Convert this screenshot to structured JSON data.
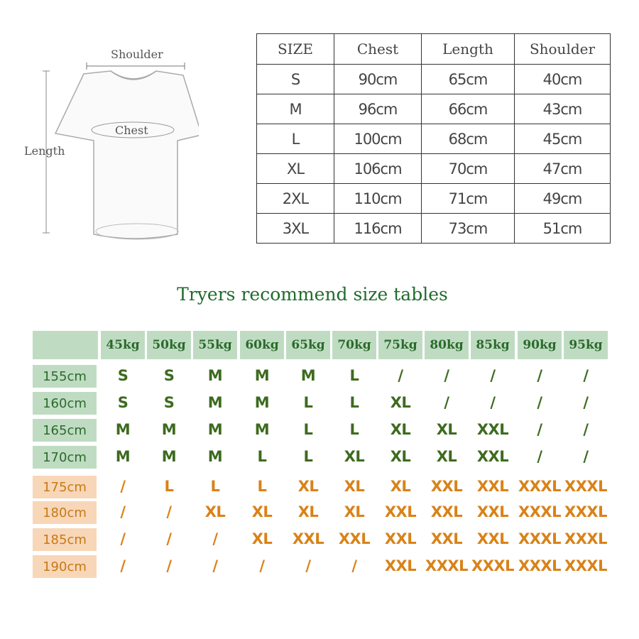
{
  "diagram": {
    "shoulder": "Shoulder",
    "chest": "Chest",
    "length": "Length"
  },
  "size_table": {
    "headers": [
      "SIZE",
      "Chest",
      "Length",
      "Shoulder"
    ],
    "rows": [
      [
        "S",
        "90cm",
        "65cm",
        "40cm"
      ],
      [
        "M",
        "96cm",
        "66cm",
        "43cm"
      ],
      [
        "L",
        "100cm",
        "68cm",
        "45cm"
      ],
      [
        "XL",
        "106cm",
        "70cm",
        "47cm"
      ],
      [
        "2XL",
        "110cm",
        "71cm",
        "49cm"
      ],
      [
        "3XL",
        "116cm",
        "73cm",
        "51cm"
      ]
    ]
  },
  "recommend": {
    "title": "Tryers recommend size tables",
    "weights": [
      "45kg",
      "50kg",
      "55kg",
      "60kg",
      "65kg",
      "70kg",
      "75kg",
      "80kg",
      "85kg",
      "90kg",
      "95kg"
    ],
    "rows": [
      {
        "height": "155cm",
        "tone": "green",
        "values": [
          "S",
          "S",
          "M",
          "M",
          "M",
          "L",
          "/",
          "/",
          "/",
          "/",
          "/"
        ]
      },
      {
        "height": "160cm",
        "tone": "green",
        "values": [
          "S",
          "S",
          "M",
          "M",
          "L",
          "L",
          "XL",
          "/",
          "/",
          "/",
          "/"
        ]
      },
      {
        "height": "165cm",
        "tone": "green",
        "values": [
          "M",
          "M",
          "M",
          "M",
          "L",
          "L",
          "XL",
          "XL",
          "XXL",
          "/",
          "/"
        ]
      },
      {
        "height": "170cm",
        "tone": "green",
        "values": [
          "M",
          "M",
          "M",
          "L",
          "L",
          "XL",
          "XL",
          "XL",
          "XXL",
          "/",
          "/"
        ]
      },
      {
        "height": "175cm",
        "tone": "orange",
        "values": [
          "/",
          "L",
          "L",
          "L",
          "XL",
          "XL",
          "XL",
          "XXL",
          "XXL",
          "XXXL",
          "XXXL"
        ]
      },
      {
        "height": "180cm",
        "tone": "orange",
        "values": [
          "/",
          "/",
          "XL",
          "XL",
          "XL",
          "XL",
          "XXL",
          "XXL",
          "XXL",
          "XXXL",
          "XXXL"
        ]
      },
      {
        "height": "185cm",
        "tone": "orange",
        "values": [
          "/",
          "/",
          "/",
          "XL",
          "XXL",
          "XXL",
          "XXL",
          "XXL",
          "XXL",
          "XXXL",
          "XXXL"
        ]
      },
      {
        "height": "190cm",
        "tone": "orange",
        "values": [
          "/",
          "/",
          "/",
          "/",
          "/",
          "/",
          "XXL",
          "XXXL",
          "XXXL",
          "XXXL",
          "XXXL"
        ]
      }
    ]
  },
  "colors": {
    "green_text": "#3d6b1f",
    "orange_text": "#d98218",
    "green_bg": "#bfdcc3",
    "orange_bg": "#f8d6b8",
    "title": "#1f6b2c"
  }
}
